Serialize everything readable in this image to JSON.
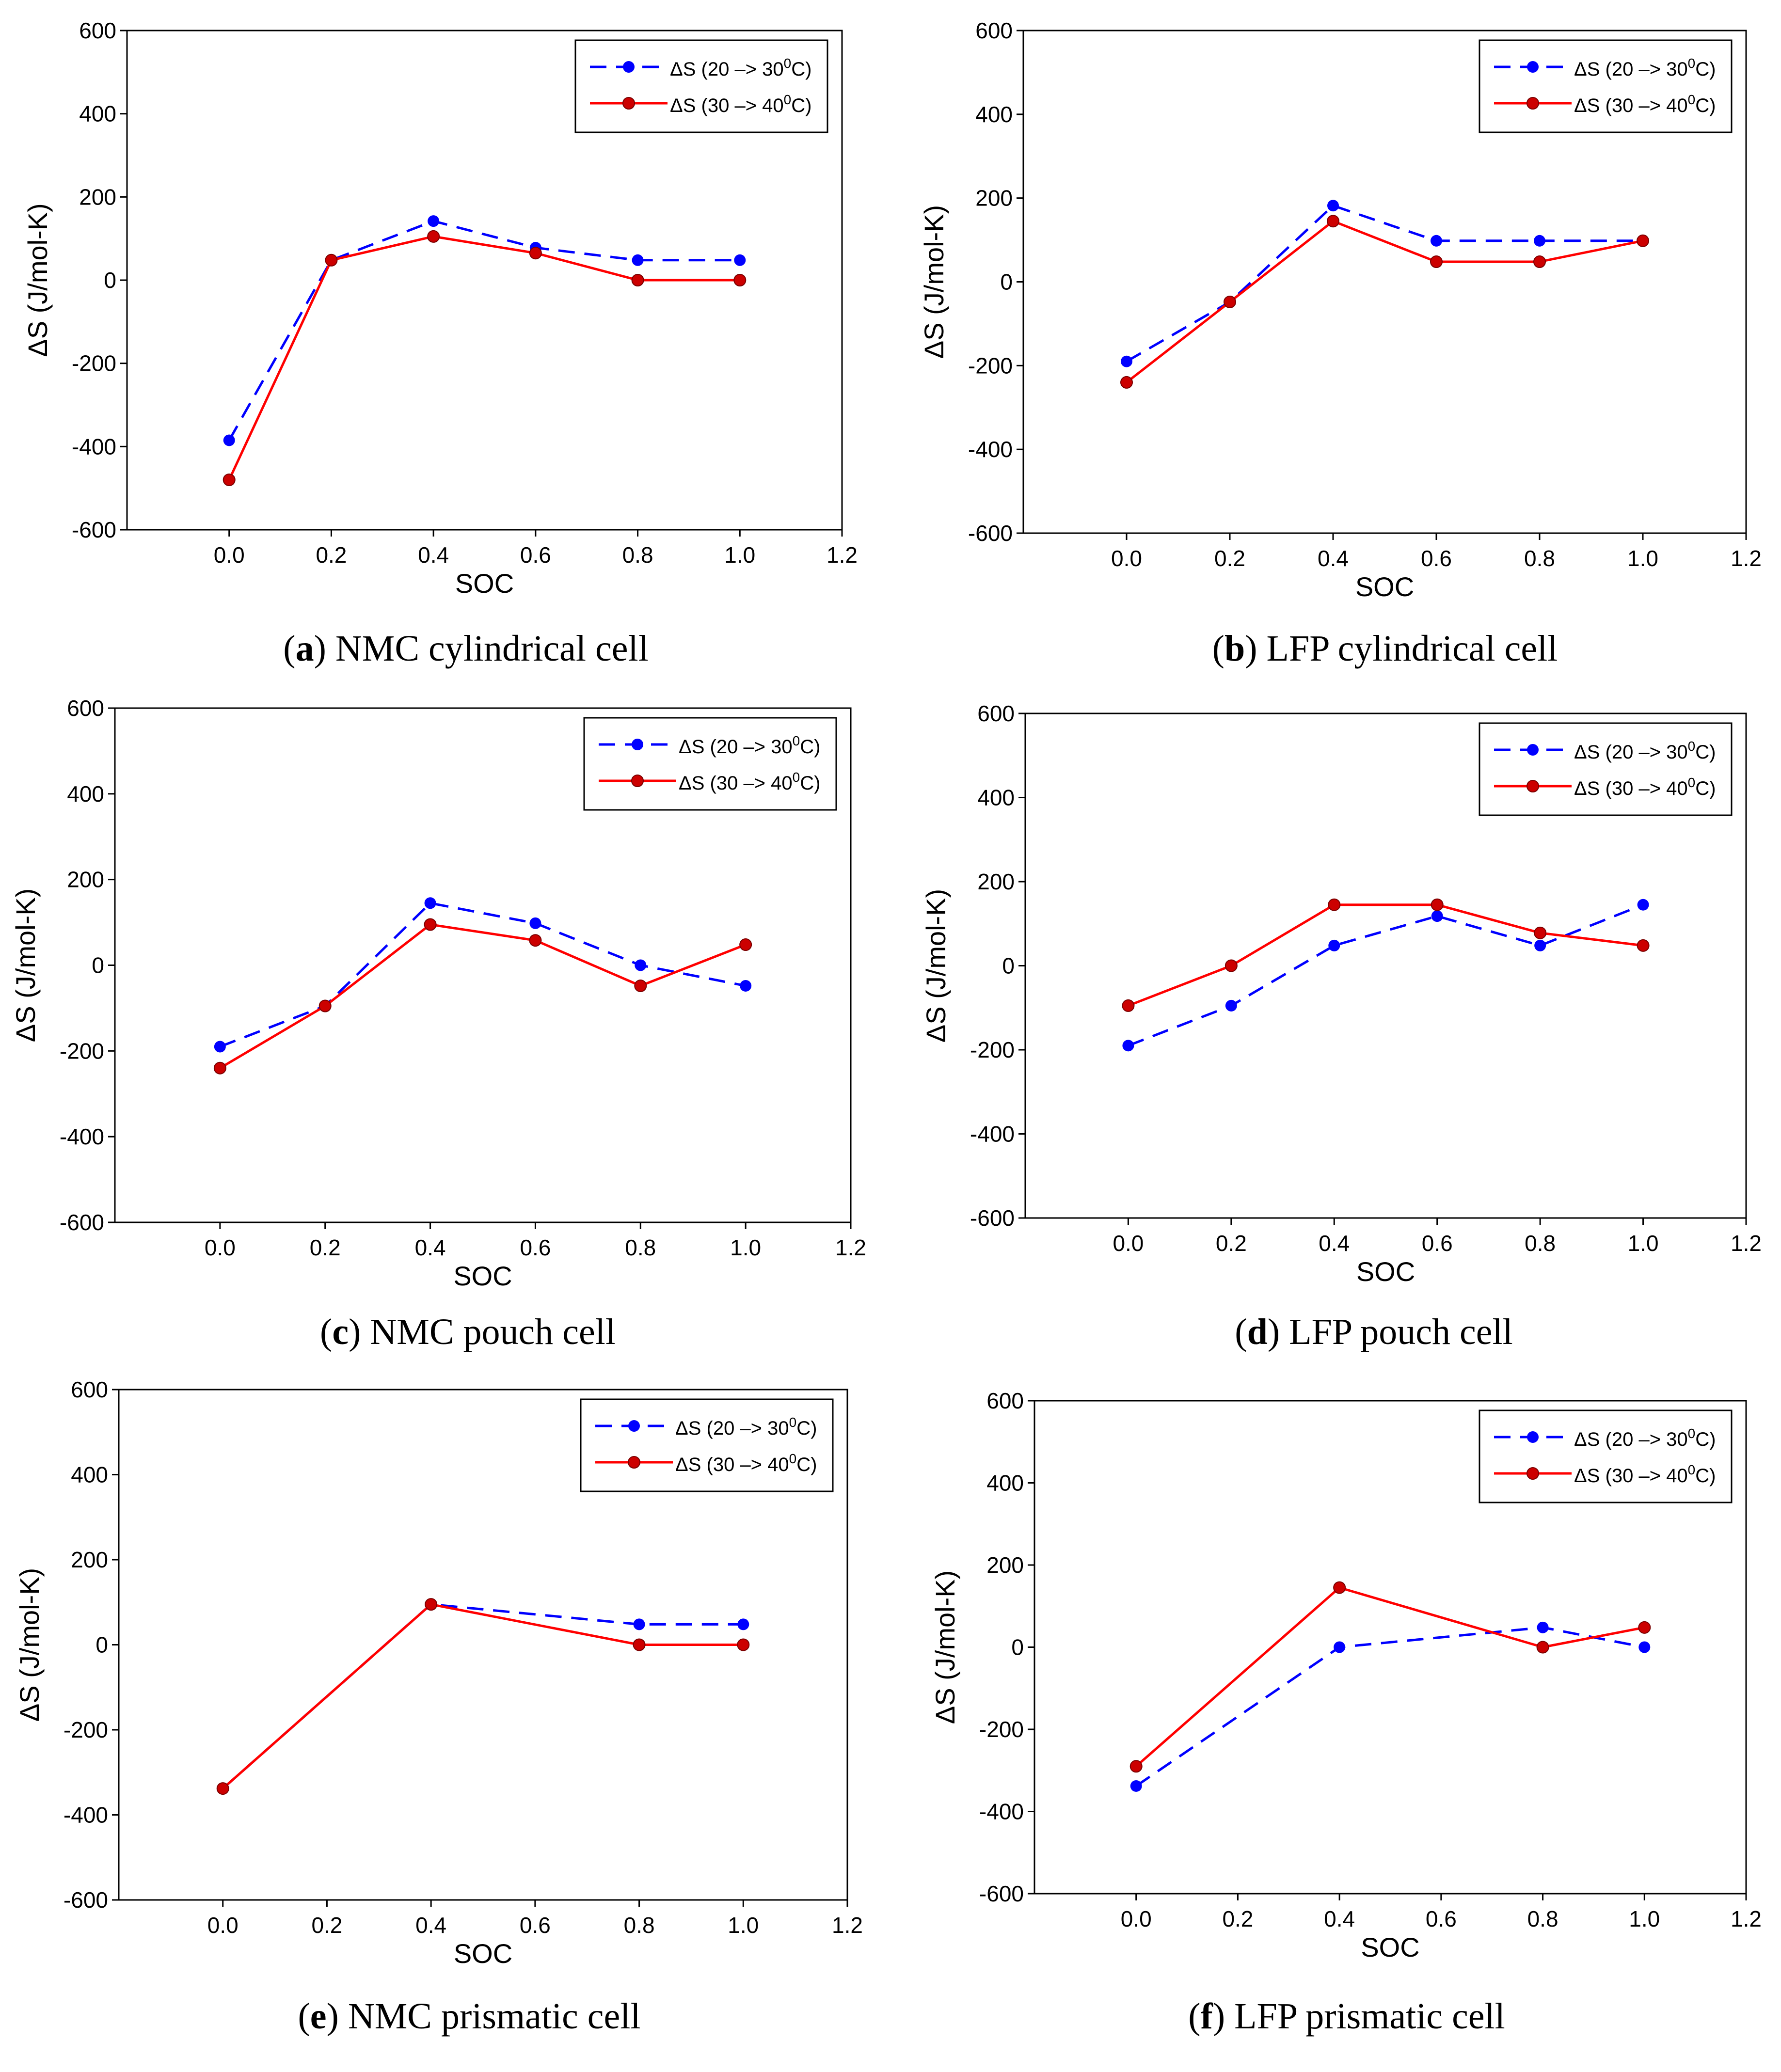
{
  "colors": {
    "series_1": "#0000ff",
    "series_2": "#ff0000",
    "series_2_marker": "#cc0000",
    "axis": "#000000"
  },
  "chart_data": [
    {
      "id": "a",
      "type": "line",
      "caption_letter": "a",
      "caption_text": "NMC cylindrical cell",
      "xlabel": "SOC",
      "ylabel": "ΔS (J/mol-K)",
      "xlim": [
        -0.2,
        1.2
      ],
      "ylim": [
        -600,
        600
      ],
      "xticks": [
        0.0,
        0.2,
        0.4,
        0.6,
        0.8,
        1.0,
        1.2
      ],
      "xtick_labels": [
        "0.0",
        "0.2",
        "0.4",
        "0.6",
        "0.8",
        "1.0",
        "1.2"
      ],
      "yticks": [
        -600,
        -400,
        -200,
        0,
        200,
        400,
        600
      ],
      "ytick_labels": [
        "-600",
        "-400",
        "-200",
        "0",
        "200",
        "400",
        "600"
      ],
      "legend": "top-right",
      "series": [
        {
          "name": "ΔS (20 –> 30",
          "sup": "0",
          "name_end": "C)",
          "style": "dashed",
          "x": [
            0.0,
            0.2,
            0.4,
            0.6,
            0.8,
            1.0
          ],
          "values": [
            -385,
            48,
            142,
            78,
            48,
            48
          ]
        },
        {
          "name": "ΔS (30 –> 40",
          "sup": "0",
          "name_end": "C)",
          "style": "solid",
          "x": [
            0.0,
            0.2,
            0.4,
            0.6,
            0.8,
            1.0
          ],
          "values": [
            -480,
            48,
            105,
            65,
            0,
            0
          ]
        }
      ]
    },
    {
      "id": "b",
      "type": "line",
      "caption_letter": "b",
      "caption_text": "LFP cylindrical cell",
      "xlabel": "SOC",
      "ylabel": "ΔS (J/mol-K)",
      "xlim": [
        -0.2,
        1.2
      ],
      "ylim": [
        -600,
        600
      ],
      "xticks": [
        0.0,
        0.2,
        0.4,
        0.6,
        0.8,
        1.0,
        1.2
      ],
      "xtick_labels": [
        "0.0",
        "0.2",
        "0.4",
        "0.6",
        "0.8",
        "1.0",
        "1.2"
      ],
      "yticks": [
        -600,
        -400,
        -200,
        0,
        200,
        400,
        600
      ],
      "ytick_labels": [
        "-600",
        "-400",
        "-200",
        "0",
        "200",
        "400",
        "600"
      ],
      "legend": "top-right",
      "series": [
        {
          "name": "ΔS (20 –> 30",
          "sup": "0",
          "name_end": "C)",
          "style": "dashed",
          "x": [
            0.0,
            0.2,
            0.4,
            0.6,
            0.8,
            1.0
          ],
          "values": [
            -190,
            -48,
            182,
            98,
            98,
            98
          ]
        },
        {
          "name": "ΔS (30 –> 40",
          "sup": "0",
          "name_end": "C)",
          "style": "solid",
          "x": [
            0.0,
            0.2,
            0.4,
            0.6,
            0.8,
            1.0
          ],
          "values": [
            -240,
            -48,
            145,
            48,
            48,
            98
          ]
        }
      ]
    },
    {
      "id": "c",
      "type": "line",
      "caption_letter": "c",
      "caption_text": "NMC pouch cell",
      "xlabel": "SOC",
      "ylabel": "ΔS (J/mol-K)",
      "xlim": [
        -0.2,
        1.2
      ],
      "ylim": [
        -600,
        600
      ],
      "xticks": [
        0.0,
        0.2,
        0.4,
        0.6,
        0.8,
        1.0,
        1.2
      ],
      "xtick_labels": [
        "0.0",
        "0.2",
        "0.4",
        "0.6",
        "0.8",
        "1.0",
        "1.2"
      ],
      "yticks": [
        -600,
        -400,
        -200,
        0,
        200,
        400,
        600
      ],
      "ytick_labels": [
        "-600",
        "-400",
        "-200",
        "0",
        "200",
        "400",
        "600"
      ],
      "legend": "top-right",
      "series": [
        {
          "name": "ΔS (20 –> 30",
          "sup": "0",
          "name_end": "C)",
          "style": "dashed",
          "x": [
            0.0,
            0.2,
            0.4,
            0.6,
            0.8,
            1.0
          ],
          "values": [
            -190,
            -95,
            145,
            98,
            0,
            -48
          ]
        },
        {
          "name": "ΔS (30 –> 40",
          "sup": "0",
          "name_end": "C)",
          "style": "solid",
          "x": [
            0.0,
            0.2,
            0.4,
            0.6,
            0.8,
            1.0
          ],
          "values": [
            -240,
            -95,
            95,
            58,
            -48,
            48
          ]
        }
      ]
    },
    {
      "id": "d",
      "type": "line",
      "caption_letter": "d",
      "caption_text": "LFP pouch cell",
      "xlabel": "SOC",
      "ylabel": "ΔS (J/mol-K)",
      "xlim": [
        -0.2,
        1.2
      ],
      "ylim": [
        -600,
        600
      ],
      "xticks": [
        0.0,
        0.2,
        0.4,
        0.6,
        0.8,
        1.0,
        1.2
      ],
      "xtick_labels": [
        "0.0",
        "0.2",
        "0.4",
        "0.6",
        "0.8",
        "1.0",
        "1.2"
      ],
      "yticks": [
        -600,
        -400,
        -200,
        0,
        200,
        400,
        600
      ],
      "ytick_labels": [
        "-600",
        "-400",
        "-200",
        "0",
        "200",
        "400",
        "600"
      ],
      "legend": "top-right",
      "series": [
        {
          "name": "ΔS (20 –> 30",
          "sup": "0",
          "name_end": "C)",
          "style": "dashed",
          "x": [
            0.0,
            0.2,
            0.4,
            0.6,
            0.8,
            1.0
          ],
          "values": [
            -190,
            -95,
            48,
            118,
            48,
            145
          ]
        },
        {
          "name": "ΔS (30 –> 40",
          "sup": "0",
          "name_end": "C)",
          "style": "solid",
          "x": [
            0.0,
            0.2,
            0.4,
            0.6,
            0.8,
            1.0
          ],
          "values": [
            -95,
            0,
            145,
            145,
            78,
            48
          ]
        }
      ]
    },
    {
      "id": "e",
      "type": "line",
      "caption_letter": "e",
      "caption_text": "NMC prismatic cell",
      "xlabel": "SOC",
      "ylabel": "ΔS (J/mol-K)",
      "xlim": [
        -0.2,
        1.2
      ],
      "ylim": [
        -600,
        600
      ],
      "xticks": [
        0.0,
        0.2,
        0.4,
        0.6,
        0.8,
        1.0,
        1.2
      ],
      "xtick_labels": [
        "0.0",
        "0.2",
        "0.4",
        "0.6",
        "0.8",
        "1.0",
        "1.2"
      ],
      "yticks": [
        -600,
        -400,
        -200,
        0,
        200,
        400,
        600
      ],
      "ytick_labels": [
        "-600",
        "-400",
        "-200",
        "0",
        "200",
        "400",
        "600"
      ],
      "legend": "top-right",
      "series": [
        {
          "name": "ΔS (20 –> 30",
          "sup": "0",
          "name_end": "C)",
          "style": "dashed",
          "x": [
            0.0,
            0.4,
            0.8,
            1.0
          ],
          "values": [
            -338,
            95,
            48,
            48
          ]
        },
        {
          "name": "ΔS (30 –> 40",
          "sup": "0",
          "name_end": "C)",
          "style": "solid",
          "x": [
            0.0,
            0.4,
            0.8,
            1.0
          ],
          "values": [
            -338,
            95,
            0,
            0
          ]
        }
      ]
    },
    {
      "id": "f",
      "type": "line",
      "caption_letter": "f",
      "caption_text": "LFP prismatic cell",
      "xlabel": "SOC",
      "ylabel": "ΔS (J/mol-K)",
      "xlim": [
        -0.2,
        1.2
      ],
      "ylim": [
        -600,
        600
      ],
      "xticks": [
        0.0,
        0.2,
        0.4,
        0.6,
        0.8,
        1.0,
        1.2
      ],
      "xtick_labels": [
        "0.0",
        "0.2",
        "0.4",
        "0.6",
        "0.8",
        "1.0",
        "1.2"
      ],
      "yticks": [
        -600,
        -400,
        -200,
        0,
        200,
        400,
        600
      ],
      "ytick_labels": [
        "-600",
        "-400",
        "-200",
        "0",
        "200",
        "400",
        "600"
      ],
      "legend": "top-right",
      "series": [
        {
          "name": "ΔS (20 –> 30",
          "sup": "0",
          "name_end": "C)",
          "style": "dashed",
          "x": [
            0.0,
            0.4,
            0.8,
            1.0
          ],
          "values": [
            -338,
            0,
            48,
            0
          ]
        },
        {
          "name": "ΔS (30 –> 40",
          "sup": "0",
          "name_end": "C)",
          "style": "solid",
          "x": [
            0.0,
            0.4,
            0.8,
            1.0
          ],
          "values": [
            -290,
            145,
            0,
            48
          ]
        }
      ]
    }
  ]
}
